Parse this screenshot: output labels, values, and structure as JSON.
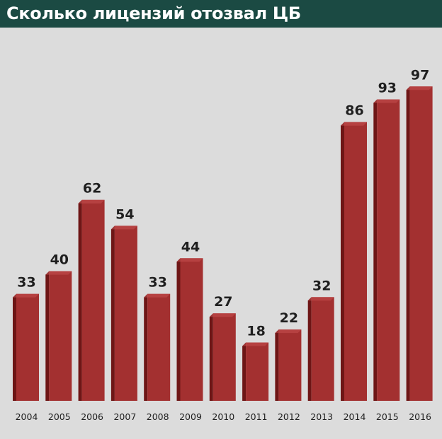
{
  "header": {
    "title": "Сколько лицензий отозвал ЦБ"
  },
  "chart_data": {
    "type": "bar",
    "title": "Сколько лицензий отозвал ЦБ",
    "xlabel": "",
    "ylabel": "",
    "categories": [
      "2004",
      "2005",
      "2006",
      "2007",
      "2008",
      "2009",
      "2010",
      "2011",
      "2012",
      "2013",
      "2014",
      "2015",
      "2016"
    ],
    "values": [
      33,
      40,
      62,
      54,
      33,
      44,
      27,
      18,
      22,
      32,
      86,
      93,
      97
    ],
    "ylim": [
      0,
      100
    ],
    "grid": false,
    "data_labels": true,
    "colors": {
      "bar": "#a33030",
      "bar_side": "#6e1616",
      "bar_top": "#c75050",
      "header_bg": "#1b4a43",
      "background": "#dcdcdc"
    }
  }
}
